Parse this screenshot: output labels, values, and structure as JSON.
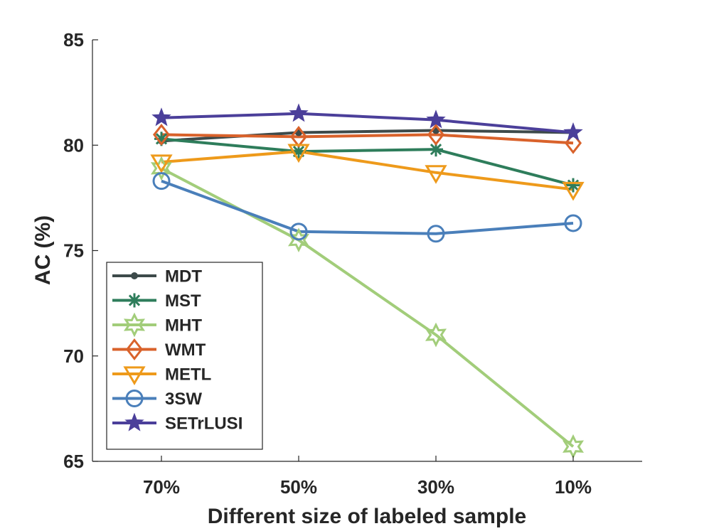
{
  "chart_data": {
    "type": "line",
    "categories": [
      "70%",
      "50%",
      "30%",
      "10%"
    ],
    "xlabel": "Different size of labeled sample",
    "ylabel": "AC (%)",
    "ylim": [
      65,
      85
    ],
    "yticks": [
      65,
      70,
      75,
      80,
      85
    ],
    "grid": false,
    "legend": "bottom-left",
    "series": [
      {
        "name": "MDT",
        "marker": "dot",
        "color": "#3d4a4a",
        "values": [
          80.2,
          80.6,
          80.7,
          80.6
        ]
      },
      {
        "name": "MST",
        "marker": "asterisk",
        "color": "#2e7d5b",
        "values": [
          80.3,
          79.7,
          79.8,
          78.1
        ]
      },
      {
        "name": "MHT",
        "marker": "hexagram",
        "color": "#a2cd7a",
        "values": [
          78.9,
          75.5,
          71.0,
          65.7
        ]
      },
      {
        "name": "WMT",
        "marker": "diamond",
        "color": "#d9622b",
        "values": [
          80.5,
          80.4,
          80.5,
          80.1
        ]
      },
      {
        "name": "METL",
        "marker": "triangle-down",
        "color": "#ee9a1b",
        "values": [
          79.2,
          79.7,
          78.7,
          77.9
        ]
      },
      {
        "name": "3SW",
        "marker": "circle",
        "color": "#4a7fba",
        "values": [
          78.3,
          75.9,
          75.8,
          76.3
        ]
      },
      {
        "name": "SETrLUSI",
        "marker": "pentagram",
        "color": "#4b3f9a",
        "values": [
          81.3,
          81.5,
          81.2,
          80.6
        ]
      }
    ]
  }
}
